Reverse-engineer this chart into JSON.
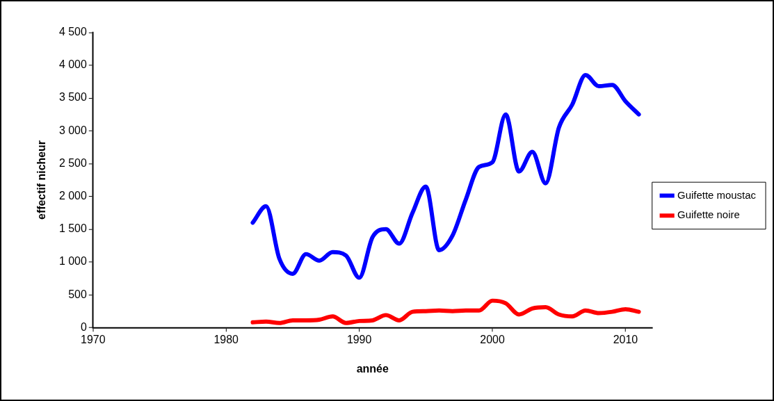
{
  "chart_data": {
    "type": "line",
    "xlabel": "année",
    "ylabel": "effectif nicheur",
    "x": [
      1982,
      1983,
      1984,
      1985,
      1986,
      1987,
      1988,
      1989,
      1990,
      1991,
      1992,
      1993,
      1994,
      1995,
      1996,
      1997,
      1998,
      1999,
      2000,
      2001,
      2002,
      2003,
      2004,
      2005,
      2006,
      2007,
      2008,
      2009,
      2010,
      2011
    ],
    "series": [
      {
        "name": "Guifette moustac",
        "color": "#0000ff",
        "values": [
          1600,
          1850,
          1050,
          820,
          1120,
          1020,
          1150,
          1100,
          760,
          1380,
          1500,
          1280,
          1750,
          2150,
          1180,
          1400,
          1950,
          2450,
          2520,
          3250,
          2380,
          2680,
          2200,
          3050,
          3400,
          3850,
          3680,
          3700,
          3450,
          3250
        ]
      },
      {
        "name": "Guifette noire",
        "color": "#ff0000",
        "values": [
          80,
          90,
          70,
          110,
          110,
          120,
          170,
          70,
          100,
          110,
          190,
          110,
          240,
          250,
          260,
          250,
          260,
          260,
          410,
          370,
          200,
          290,
          310,
          200,
          170,
          260,
          220,
          240,
          280,
          240
        ]
      }
    ],
    "xlim": [
      1970,
      2012
    ],
    "xticks": [
      1970,
      1980,
      1990,
      2000,
      2010
    ],
    "ylim": [
      0,
      4500
    ],
    "yticks": [
      0,
      500,
      {
        "value": 1000,
        "label": "1 000"
      },
      {
        "value": 1500,
        "label": "1 500"
      },
      {
        "value": 2000,
        "label": "2 000"
      },
      {
        "value": 2500,
        "label": "2 500"
      },
      {
        "value": 3000,
        "label": "3 000"
      },
      {
        "value": 3500,
        "label": "3 500"
      },
      {
        "value": 4000,
        "label": "4 000"
      },
      {
        "value": 4500,
        "label": "4 500"
      }
    ],
    "grid": false,
    "legend": "right",
    "marker": "none",
    "line_style": "solid"
  }
}
